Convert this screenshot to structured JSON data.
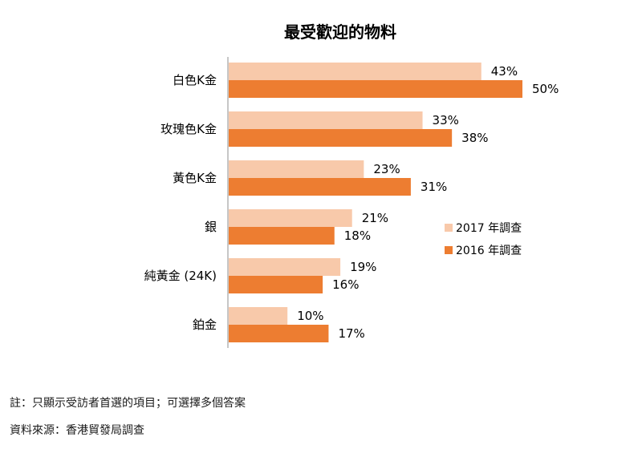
{
  "chart_data": {
    "type": "bar",
    "orientation": "horizontal",
    "title": "最受歡迎的物料",
    "categories": [
      "白色K金",
      "玫瑰色K金",
      "黃色K金",
      "銀",
      "純黃金 (24K)",
      "鉑金"
    ],
    "series": [
      {
        "name": "2017 年調查",
        "color": "#f8c9aa",
        "values": [
          43,
          33,
          23,
          21,
          19,
          10
        ]
      },
      {
        "name": "2016 年調查",
        "color": "#ed7d31",
        "values": [
          50,
          38,
          31,
          18,
          16,
          17
        ]
      }
    ],
    "value_suffix": "%",
    "xlim": [
      0,
      55
    ],
    "legend_position": "right"
  },
  "footnotes": {
    "note": "註：只顯示受訪者首選的項目；可選擇多個答案",
    "source": "資料來源：香港貿發局調查"
  }
}
